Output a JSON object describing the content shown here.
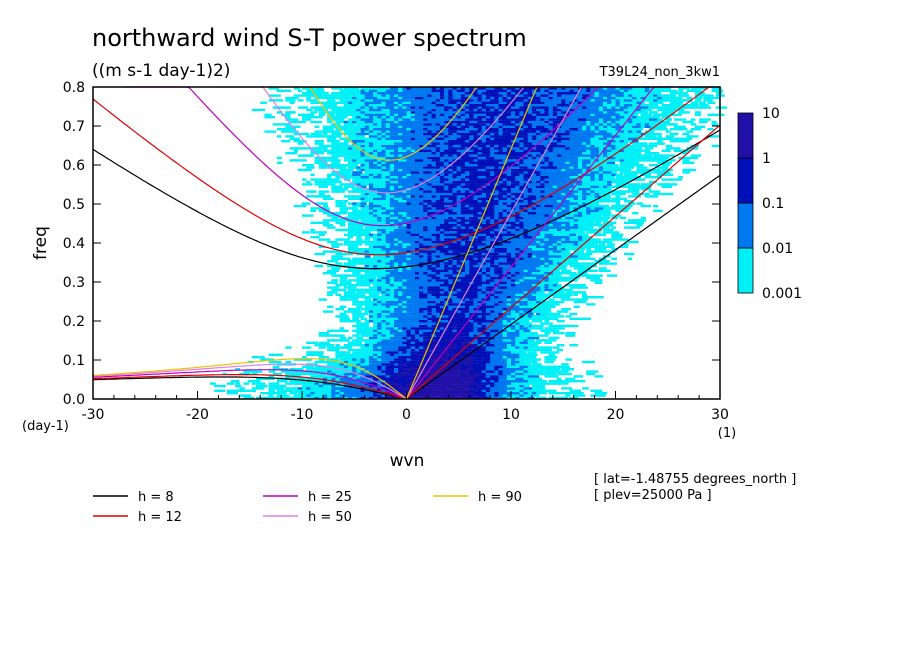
{
  "chart_data": {
    "type": "heatmap",
    "title": "northward wind S-T power spectrum",
    "units": "((m s-1 day-1)2)",
    "run_label": "T39L24_non_3kw1",
    "xlabel": "wvn",
    "ylabel": "freq",
    "x_unit_label": "(1)",
    "y_unit_label": "(day-1)",
    "xlim": [
      -30,
      30
    ],
    "ylim": [
      0,
      0.8
    ],
    "x_ticks": [
      -30,
      -20,
      -10,
      0,
      10,
      20,
      30
    ],
    "y_ticks": [
      0.0,
      0.1,
      0.2,
      0.3,
      0.4,
      0.5,
      0.6,
      0.7,
      0.8
    ],
    "colorbar": {
      "levels": [
        "0.001",
        "0.01",
        "0.1",
        "1",
        "10"
      ],
      "colors": [
        "#00f0f8",
        "#0078f0",
        "#0010b8",
        "#2010a8"
      ]
    },
    "dispersion_curves": [
      {
        "h": 8,
        "label": "h =  8",
        "color": "#000000"
      },
      {
        "h": 12,
        "label": "h = 12",
        "color": "#e00000"
      },
      {
        "h": 25,
        "label": "h = 25",
        "color": "#c000c0"
      },
      {
        "h": 50,
        "label": "h = 50",
        "color": "#e080e0"
      },
      {
        "h": 90,
        "label": "h = 90",
        "color": "#f0c000"
      }
    ],
    "annotations": [
      "[ lat=-1.48755 degrees_north ]",
      "[ plev=25000 Pa ]"
    ]
  }
}
